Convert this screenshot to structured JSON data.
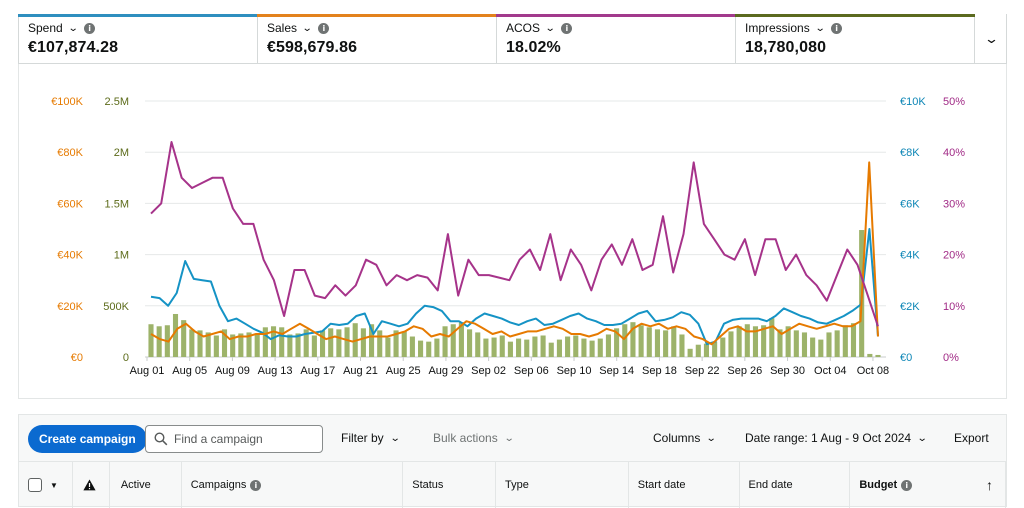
{
  "metrics": [
    {
      "label": "Spend",
      "value": "€107,874.28",
      "color": "#0d86b6"
    },
    {
      "label": "Sales",
      "value": "€598,679.86",
      "color": "#e67a00"
    },
    {
      "label": "ACOS",
      "value": "18.02%",
      "color": "#a12a86"
    },
    {
      "label": "Impressions",
      "value": "18,780,080",
      "color": "#5c6b1a"
    }
  ],
  "chart_data": {
    "type": "line",
    "x_labels": [
      "Aug 01",
      "Aug 05",
      "Aug 09",
      "Aug 13",
      "Aug 17",
      "Aug 21",
      "Aug 25",
      "Aug 29",
      "Sep 02",
      "Sep 06",
      "Sep 10",
      "Sep 14",
      "Sep 18",
      "Sep 22",
      "Sep 26",
      "Sep 30",
      "Oct 04",
      "Oct 08"
    ],
    "axes": {
      "sales": {
        "ticks": [
          "€100K",
          "€80K",
          "€60K",
          "€40K",
          "€20K",
          "€0"
        ],
        "range": [
          0,
          100000
        ],
        "color": "#e67a00"
      },
      "impressions": {
        "ticks": [
          "2.5M",
          "2M",
          "1.5M",
          "1M",
          "500K",
          "0"
        ],
        "range": [
          0,
          2500000
        ],
        "color": "#5c6b1a"
      },
      "spend": {
        "ticks": [
          "€10K",
          "€8K",
          "€6K",
          "€4K",
          "€2K",
          "€0"
        ],
        "range": [
          0,
          10000
        ],
        "color": "#0d86b6"
      },
      "acos": {
        "ticks": [
          "50%",
          "40%",
          "30%",
          "20%",
          "10%",
          "0%"
        ],
        "range": [
          0,
          50
        ],
        "color": "#a12a86"
      }
    },
    "series": [
      {
        "name": "Impressions",
        "axis": "impressions",
        "kind": "bar",
        "color": "#9db36a",
        "values": [
          320000,
          300000,
          310000,
          420000,
          360000,
          270000,
          260000,
          240000,
          210000,
          270000,
          220000,
          230000,
          240000,
          230000,
          290000,
          300000,
          290000,
          220000,
          230000,
          270000,
          210000,
          260000,
          280000,
          270000,
          290000,
          330000,
          280000,
          320000,
          260000,
          190000,
          260000,
          250000,
          200000,
          160000,
          150000,
          180000,
          300000,
          320000,
          340000,
          270000,
          240000,
          180000,
          190000,
          210000,
          150000,
          180000,
          170000,
          200000,
          210000,
          140000,
          170000,
          200000,
          210000,
          180000,
          160000,
          180000,
          220000,
          280000,
          320000,
          340000,
          310000,
          290000,
          270000,
          260000,
          300000,
          220000,
          80000,
          120000,
          130000,
          150000,
          190000,
          250000,
          300000,
          320000,
          300000,
          310000,
          380000,
          270000,
          300000,
          260000,
          240000,
          190000,
          170000,
          240000,
          260000,
          310000,
          330000,
          1240000,
          30000,
          20000
        ]
      },
      {
        "name": "Spend",
        "axis": "spend",
        "kind": "line",
        "color": "#1593c5",
        "values": [
          2350,
          2300,
          2000,
          2500,
          3750,
          3050,
          3000,
          2950,
          2000,
          1400,
          1500,
          1300,
          1100,
          950,
          700,
          850,
          800,
          800,
          900,
          950,
          1000,
          1300,
          1250,
          1300,
          1600,
          1700,
          900,
          1400,
          1300,
          1200,
          1300,
          1700,
          2000,
          1950,
          1800,
          1400,
          1400,
          1200,
          1500,
          1700,
          1600,
          1500,
          1350,
          1250,
          1400,
          1500,
          1250,
          1300,
          1450,
          1600,
          1700,
          1500,
          1400,
          1250,
          1250,
          1300,
          1500,
          1700,
          1800,
          1400,
          1450,
          1550,
          1750,
          1650,
          1300,
          500,
          600,
          1300,
          1450,
          1500,
          1500,
          1500,
          1400,
          1600,
          1900,
          1750,
          1600,
          1500,
          1350,
          1300,
          1450,
          1600,
          1800,
          2050,
          5000,
          800
        ]
      },
      {
        "name": "Sales",
        "axis": "sales",
        "kind": "line",
        "color": "#e67a00",
        "values": [
          9000,
          7000,
          6000,
          11000,
          13000,
          10000,
          8000,
          9000,
          10000,
          7000,
          8000,
          8000,
          9000,
          9000,
          10000,
          9000,
          11000,
          13000,
          11000,
          9000,
          7000,
          8000,
          7000,
          6000,
          7000,
          8000,
          8000,
          8000,
          9000,
          10000,
          12000,
          11000,
          8000,
          9000,
          8000,
          11000,
          14000,
          13000,
          11000,
          9000,
          10000,
          8000,
          9000,
          10000,
          10000,
          11000,
          12000,
          11000,
          9000,
          9000,
          8000,
          9000,
          11000,
          10000,
          7000,
          11000,
          13000,
          12000,
          13000,
          11000,
          12000,
          11000,
          8000,
          7000,
          5000,
          8000,
          11000,
          12000,
          10000,
          10000,
          11000,
          12000,
          9000,
          11000,
          13000,
          12000,
          11000,
          12000,
          13000,
          12000,
          12000,
          14000,
          76000,
          8000
        ]
      },
      {
        "name": "ACOS",
        "axis": "acos",
        "kind": "line",
        "color": "#a6338a",
        "values": [
          28,
          30,
          42,
          35,
          33,
          34,
          35,
          35,
          29,
          26,
          26,
          19,
          15,
          8,
          17,
          17,
          12,
          11.5,
          14,
          12,
          14,
          19,
          18,
          14,
          16,
          15,
          16,
          15.5,
          13,
          24,
          12,
          19,
          16,
          16,
          15.5,
          15,
          19,
          21,
          17,
          24,
          15,
          21,
          18,
          13,
          19,
          22,
          18,
          23,
          17,
          18,
          27.5,
          16.5,
          24,
          38,
          26,
          23,
          20,
          19,
          23,
          16,
          23,
          23,
          17,
          20,
          16,
          14,
          11,
          16,
          21,
          18,
          12,
          6
        ]
      }
    ]
  },
  "toolbar": {
    "create_label": "Create campaign",
    "search_placeholder": "Find a campaign",
    "filter_label": "Filter by",
    "bulk_label": "Bulk actions",
    "columns_label": "Columns",
    "date_range_label": "Date range: 1 Aug - 9 Oct 2024",
    "export_label": "Export"
  },
  "table": {
    "headers": {
      "active": "Active",
      "campaigns": "Campaigns",
      "status": "Status",
      "type": "Type",
      "start_date": "Start date",
      "end_date": "End date",
      "budget": "Budget"
    }
  }
}
